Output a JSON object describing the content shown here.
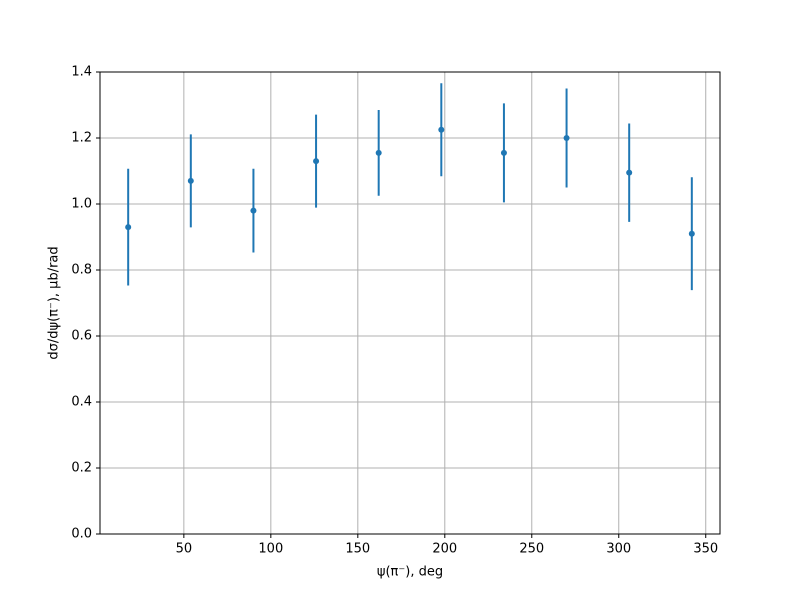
{
  "chart_data": {
    "type": "errorbar",
    "x_label": "ψ(π⁻), deg",
    "y_label": "dσ/dψ(π⁻), μb/rad",
    "series": [
      {
        "color": "#1f77b4",
        "x": [
          18,
          54,
          90,
          126,
          162,
          198,
          234,
          270,
          306,
          342
        ],
        "values": [
          0.93,
          1.07,
          0.98,
          1.13,
          1.155,
          1.225,
          1.155,
          1.2,
          1.095,
          0.91
        ],
        "errors": [
          0.177,
          0.141,
          0.127,
          0.141,
          0.13,
          0.141,
          0.15,
          0.15,
          0.149,
          0.171
        ]
      }
    ],
    "xlim": [
      1.8,
      358.2
    ],
    "ylim": [
      0,
      1.4
    ],
    "xticks": [
      50,
      100,
      150,
      200,
      250,
      300,
      350
    ],
    "yticks": [
      {
        "value": 0,
        "label": "0.0"
      },
      {
        "value": 0.2,
        "label": "0.2"
      },
      {
        "value": 0.4,
        "label": "0.4"
      },
      {
        "value": 0.6,
        "label": "0.6"
      },
      {
        "value": 0.8,
        "label": "0.8"
      },
      {
        "value": 1.0,
        "label": "1.0"
      },
      {
        "value": 1.2,
        "label": "1.2"
      },
      {
        "value": 1.4,
        "label": "1.4"
      }
    ],
    "grid": true
  }
}
